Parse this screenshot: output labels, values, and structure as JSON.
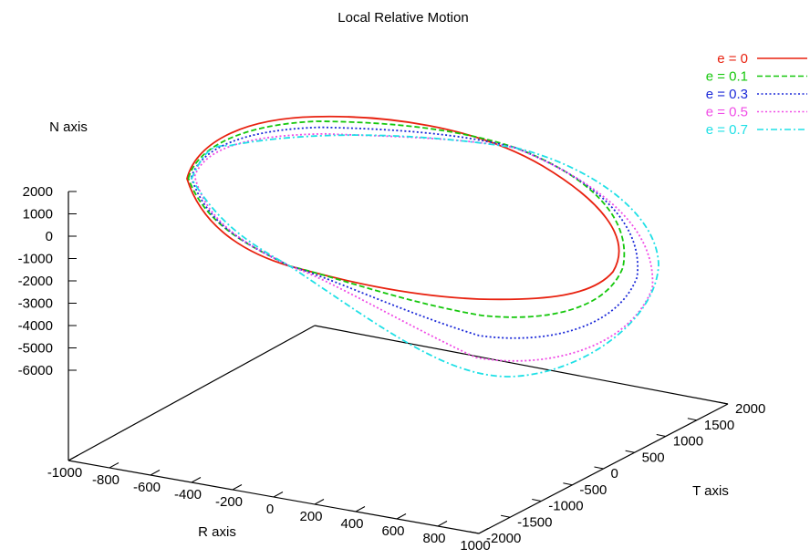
{
  "chart_data": {
    "type": "line",
    "title": "Local Relative Motion",
    "xlabel": "R axis",
    "ylabel": "T axis",
    "zlabel": "N axis",
    "x_ticks": [
      "-1000",
      "-800",
      "-600",
      "-400",
      "-200",
      "0",
      "200",
      "400",
      "600",
      "800",
      "1000"
    ],
    "y_ticks": [
      "-2000",
      "-1500",
      "-1000",
      "-500",
      "0",
      "500",
      "1000",
      "1500",
      "2000"
    ],
    "z_ticks": [
      "2000",
      "1000",
      "0",
      "-1000",
      "-2000",
      "-3000",
      "-4000",
      "-5000",
      "-6000"
    ],
    "xlim": [
      -1000,
      1000
    ],
    "ylim": [
      -2000,
      2000
    ],
    "zlim": [
      -6000,
      2000
    ],
    "legend_position": "top-right",
    "series": [
      {
        "name": "e = 0",
        "color": "#e8210f",
        "dash": "solid"
      },
      {
        "name": "e = 0.1",
        "color": "#15c70c",
        "dash": "dashed"
      },
      {
        "name": "e = 0.3",
        "color": "#1b29d8",
        "dash": "dotted"
      },
      {
        "name": "e = 0.5",
        "color": "#f04ce6",
        "dash": "dotted"
      },
      {
        "name": "e = 0.7",
        "color": "#1fe0e6",
        "dash": "dashdot"
      }
    ]
  }
}
